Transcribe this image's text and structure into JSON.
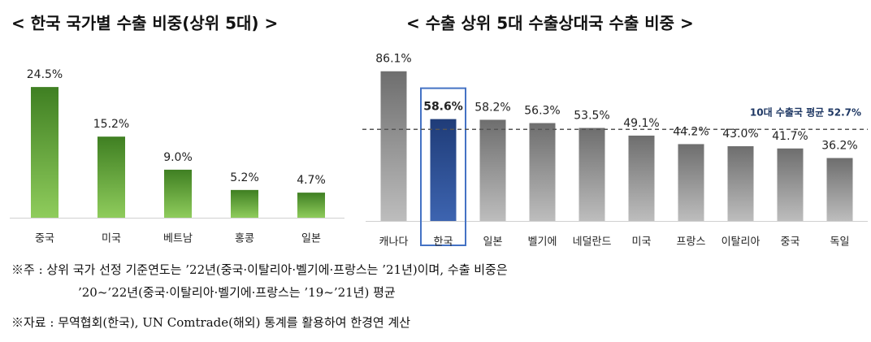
{
  "chart_data": [
    {
      "type": "bar",
      "title": "< 한국 국가별 수출 비중(상위 5대) >",
      "categories": [
        "중국",
        "미국",
        "베트남",
        "홍콩",
        "일본"
      ],
      "values": [
        24.5,
        15.2,
        9.0,
        5.2,
        4.7
      ],
      "value_labels": [
        "24.5%",
        "15.2%",
        "9.0%",
        "5.2%",
        "4.7%"
      ],
      "color": "#5a9a36",
      "ylim": [
        0,
        30
      ]
    },
    {
      "type": "bar",
      "title": "< 수출 상위 5대 수출상대국 수출 비중 >",
      "categories": [
        "캐나다",
        "한국",
        "일본",
        "벨기에",
        "네덜란드",
        "미국",
        "프랑스",
        "이탈리아",
        "중국",
        "독일"
      ],
      "values": [
        86.1,
        58.6,
        58.2,
        56.3,
        53.5,
        49.1,
        44.2,
        43.0,
        41.7,
        36.2
      ],
      "value_labels": [
        "86.1%",
        "58.6%",
        "58.2%",
        "56.3%",
        "53.5%",
        "49.1%",
        "44.2%",
        "43.0%",
        "41.7%",
        "36.2%"
      ],
      "color": "#7f7f7f",
      "ylim": [
        0,
        100
      ],
      "highlight": {
        "category": "한국",
        "color": "#1f3c78",
        "label_color": "#ff0000",
        "box_color": "#4472c4"
      },
      "reference": {
        "value": 52.7,
        "label": "10대 수출국 평균 52.7%",
        "color": "#1f3864"
      }
    }
  ],
  "notes": [
    "※주 : 상위 국가 선정 기준연도는 ’22년(중국·이탈리아·벨기에·프랑스는 ’21년)이며, 수출 비중은",
    "’20~’22년(중국·이탈리아·벨기에·프랑스는 ’19~’21년) 평균",
    "※자료 : 무역협회(한국), UN Comtrade(해외) 통계를 활용하여 한경연 계산"
  ]
}
